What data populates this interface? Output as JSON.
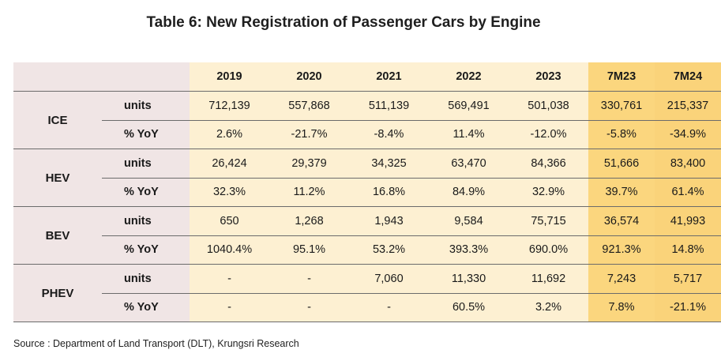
{
  "title": "Table 6: New Registration of Passenger Cars by Engine",
  "columns": [
    "2019",
    "2020",
    "2021",
    "2022",
    "2023",
    "7M23",
    "7M24"
  ],
  "rows": [
    {
      "engine": "ICE",
      "units_label": "units",
      "units": [
        "712,139",
        "557,868",
        "511,139",
        "569,491",
        "501,038",
        "330,761",
        "215,337"
      ],
      "yoy_label": "% YoY",
      "yoy": [
        "2.6%",
        "-21.7%",
        "-8.4%",
        "11.4%",
        "-12.0%",
        "-5.8%",
        "-34.9%"
      ]
    },
    {
      "engine": "HEV",
      "units_label": "units",
      "units": [
        "26,424",
        "29,379",
        "34,325",
        "63,470",
        "84,366",
        "51,666",
        "83,400"
      ],
      "yoy_label": "% YoY",
      "yoy": [
        "32.3%",
        "11.2%",
        "16.8%",
        "84.9%",
        "32.9%",
        "39.7%",
        "61.4%"
      ]
    },
    {
      "engine": "BEV",
      "units_label": "units",
      "units": [
        "650",
        "1,268",
        "1,943",
        "9,584",
        "75,715",
        "36,574",
        "41,993"
      ],
      "yoy_label": "% YoY",
      "yoy": [
        "1040.4%",
        "95.1%",
        "53.2%",
        "393.3%",
        "690.0%",
        "921.3%",
        "14.8%"
      ]
    },
    {
      "engine": "PHEV",
      "units_label": "units",
      "units": [
        "-",
        "-",
        "7,060",
        "11,330",
        "11,692",
        "7,243",
        "5,717"
      ],
      "yoy_label": "% YoY",
      "yoy": [
        "-",
        "-",
        "-",
        "60.5%",
        "3.2%",
        "7.8%",
        "-21.1%"
      ]
    }
  ],
  "source": "Source : Department of Land Transport (DLT), Krungsri Research",
  "colors": {
    "label_bg": "#f0e5e5",
    "year_bg": "#fdf0d2",
    "ytd_bg": "#fbd67e"
  }
}
